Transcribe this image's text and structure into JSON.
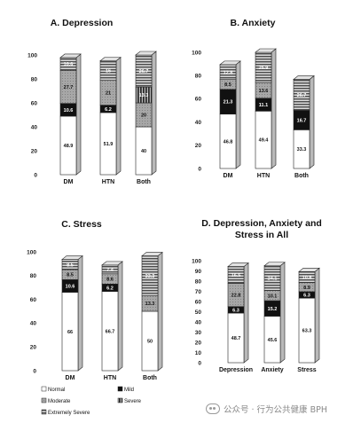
{
  "colors": {
    "normal": "#ffffff",
    "mild": "#111111",
    "moderate": "#a7a7a7",
    "severe": "#2a2a2a",
    "extremely_severe": "#8d8d8d",
    "outline": "#222222",
    "side_shade": "#b9b9b9",
    "top_shade": "#e2e2e2"
  },
  "legend": {
    "items": [
      {
        "key": "normal",
        "label": "Normal"
      },
      {
        "key": "mild",
        "label": "Mild"
      },
      {
        "key": "moderate",
        "label": "Moderate"
      },
      {
        "key": "severe",
        "label": "Severe"
      },
      {
        "key": "extremely_severe",
        "label": "Extremely Severe"
      }
    ]
  },
  "watermark": {
    "icon": "wechat-icon",
    "text": "公众号 · 行为公共健康 BPH"
  },
  "chart_data": [
    {
      "type": "bar",
      "stacked": true,
      "title": "A. Depression",
      "categories": [
        "DM",
        "HTN",
        "Both"
      ],
      "ylim": [
        0,
        100
      ],
      "yticks": [
        0,
        20,
        40,
        60,
        80,
        100
      ],
      "series": [
        {
          "name": "Normal",
          "values": [
            48.9,
            51.9,
            40
          ]
        },
        {
          "name": "Mild",
          "values": [
            10.6,
            6.2,
            null
          ]
        },
        {
          "name": "Moderate",
          "values": [
            27.7,
            21,
            20
          ]
        },
        {
          "name": "Severe",
          "values": [
            null,
            null,
            13.3
          ]
        },
        {
          "name": "Extremely Severe",
          "values": [
            10.6,
            16,
            26.7
          ]
        }
      ]
    },
    {
      "type": "bar",
      "stacked": true,
      "title": "B. Anxiety",
      "categories": [
        "DM",
        "HTN",
        "Both"
      ],
      "ylim": [
        0,
        100
      ],
      "yticks": [
        0,
        20,
        40,
        60,
        80,
        100
      ],
      "series": [
        {
          "name": "Normal",
          "values": [
            46.8,
            49.4,
            33.3
          ]
        },
        {
          "name": "Mild",
          "values": [
            21.3,
            11.1,
            16.7
          ]
        },
        {
          "name": "Moderate",
          "values": [
            8.5,
            13.6,
            null
          ]
        },
        {
          "name": "Severe",
          "values": [
            null,
            null,
            null
          ]
        },
        {
          "name": "Extremely Severe",
          "values": [
            12.8,
            25.9,
            26.7
          ]
        }
      ]
    },
    {
      "type": "bar",
      "stacked": true,
      "title": "C. Stress",
      "categories": [
        "DM",
        "HTN",
        "Both"
      ],
      "ylim": [
        0,
        100
      ],
      "yticks": [
        0,
        20,
        40,
        60,
        80,
        100
      ],
      "series": [
        {
          "name": "Normal",
          "values": [
            66,
            66.7,
            50
          ]
        },
        {
          "name": "Mild",
          "values": [
            10.6,
            6.2,
            null
          ]
        },
        {
          "name": "Moderate",
          "values": [
            8.5,
            8.6,
            13.3
          ]
        },
        {
          "name": "Severe",
          "values": [
            null,
            null,
            null
          ]
        },
        {
          "name": "Extremely Severe",
          "values": [
            8.5,
            7.4,
            33.3
          ]
        }
      ]
    },
    {
      "type": "bar",
      "stacked": true,
      "title": "D. Depression, Anxiety and",
      "title2": "Stress in All",
      "categories": [
        "Depression",
        "Anxiety",
        "Stress"
      ],
      "ylim": [
        0,
        100
      ],
      "yticks": [
        0,
        10,
        20,
        30,
        40,
        50,
        60,
        70,
        80,
        90,
        100
      ],
      "series": [
        {
          "name": "Normal",
          "values": [
            48.7,
            45.6,
            63.3
          ]
        },
        {
          "name": "Mild",
          "values": [
            6.3,
            15.2,
            6.3
          ]
        },
        {
          "name": "Moderate",
          "values": [
            22.8,
            10.1,
            8.9
          ]
        },
        {
          "name": "Severe",
          "values": [
            null,
            null,
            null
          ]
        },
        {
          "name": "Extremely Severe",
          "values": [
            16.5,
            24.1,
            10.8
          ]
        }
      ]
    }
  ]
}
